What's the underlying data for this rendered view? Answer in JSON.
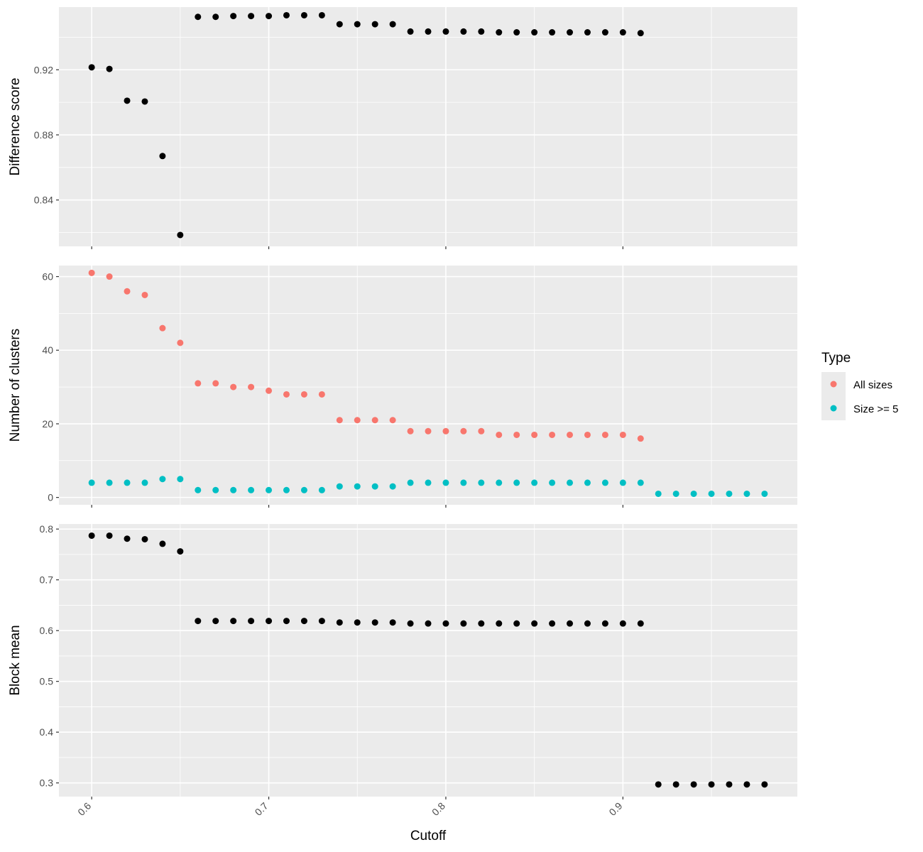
{
  "chart_data": {
    "type": "scatter",
    "xlabel": "Cutoff",
    "x_ticks": [
      0.6,
      0.7,
      0.8,
      0.9
    ],
    "x_tick_labels": [
      "0.6",
      "0.7",
      "0.8",
      "0.9"
    ],
    "xlim": [
      0.5815,
      0.9985
    ],
    "grid": true,
    "legend": {
      "title": "Type",
      "placement": "right",
      "entries": [
        {
          "label": "All sizes",
          "color": "#F8766D"
        },
        {
          "label": "Size >= 5",
          "color": "#00BFC4"
        }
      ]
    },
    "panels": [
      {
        "ylabel": "Difference score",
        "ylim": [
          0.8115,
          0.9585
        ],
        "y_ticks": [
          0.84,
          0.88,
          0.92
        ],
        "y_tick_labels": [
          "0.84",
          "0.88",
          "0.92"
        ],
        "series": [
          {
            "color": "#000000",
            "x": [
              0.6,
              0.61,
              0.62,
              0.63,
              0.64,
              0.65,
              0.66,
              0.67,
              0.68,
              0.69,
              0.7,
              0.71,
              0.72,
              0.73,
              0.74,
              0.75,
              0.76,
              0.77,
              0.78,
              0.79,
              0.8,
              0.81,
              0.82,
              0.83,
              0.84,
              0.85,
              0.86,
              0.87,
              0.88,
              0.89,
              0.9,
              0.91
            ],
            "y": [
              0.9215,
              0.9205,
              0.901,
              0.9005,
              0.867,
              0.8185,
              0.9525,
              0.9525,
              0.953,
              0.953,
              0.953,
              0.9535,
              0.9535,
              0.9535,
              0.948,
              0.948,
              0.948,
              0.948,
              0.9435,
              0.9435,
              0.9435,
              0.9435,
              0.9435,
              0.943,
              0.943,
              0.943,
              0.943,
              0.943,
              0.943,
              0.943,
              0.943,
              0.9425
            ]
          }
        ]
      },
      {
        "ylabel": "Number of clusters",
        "ylim": [
          -2,
          63
        ],
        "y_ticks": [
          0,
          20,
          40,
          60
        ],
        "y_tick_labels": [
          "0",
          "20",
          "40",
          "60"
        ],
        "series": [
          {
            "name": "All sizes",
            "color": "#F8766D",
            "x": [
              0.6,
              0.61,
              0.62,
              0.63,
              0.64,
              0.65,
              0.66,
              0.67,
              0.68,
              0.69,
              0.7,
              0.71,
              0.72,
              0.73,
              0.74,
              0.75,
              0.76,
              0.77,
              0.78,
              0.79,
              0.8,
              0.81,
              0.82,
              0.83,
              0.84,
              0.85,
              0.86,
              0.87,
              0.88,
              0.89,
              0.9,
              0.91
            ],
            "y": [
              61,
              60,
              56,
              55,
              46,
              42,
              31,
              31,
              30,
              30,
              29,
              28,
              28,
              28,
              21,
              21,
              21,
              21,
              18,
              18,
              18,
              18,
              18,
              17,
              17,
              17,
              17,
              17,
              17,
              17,
              17,
              16
            ]
          },
          {
            "name": "Size >= 5",
            "color": "#00BFC4",
            "x": [
              0.6,
              0.61,
              0.62,
              0.63,
              0.64,
              0.65,
              0.66,
              0.67,
              0.68,
              0.69,
              0.7,
              0.71,
              0.72,
              0.73,
              0.74,
              0.75,
              0.76,
              0.77,
              0.78,
              0.79,
              0.8,
              0.81,
              0.82,
              0.83,
              0.84,
              0.85,
              0.86,
              0.87,
              0.88,
              0.89,
              0.9,
              0.91,
              0.92,
              0.93,
              0.94,
              0.95,
              0.96,
              0.97,
              0.98
            ],
            "y": [
              4,
              4,
              4,
              4,
              5,
              5,
              2,
              2,
              2,
              2,
              2,
              2,
              2,
              2,
              3,
              3,
              3,
              3,
              4,
              4,
              4,
              4,
              4,
              4,
              4,
              4,
              4,
              4,
              4,
              4,
              4,
              4,
              1,
              1,
              1,
              1,
              1,
              1,
              1
            ]
          }
        ]
      },
      {
        "ylabel": "Block mean",
        "ylim": [
          0.273,
          0.81
        ],
        "y_ticks": [
          0.3,
          0.4,
          0.5,
          0.6,
          0.7,
          0.8
        ],
        "y_tick_labels": [
          "0.3",
          "0.4",
          "0.5",
          "0.6",
          "0.7",
          "0.8"
        ],
        "series": [
          {
            "color": "#000000",
            "x": [
              0.6,
              0.61,
              0.62,
              0.63,
              0.64,
              0.65,
              0.66,
              0.67,
              0.68,
              0.69,
              0.7,
              0.71,
              0.72,
              0.73,
              0.74,
              0.75,
              0.76,
              0.77,
              0.78,
              0.79,
              0.8,
              0.81,
              0.82,
              0.83,
              0.84,
              0.85,
              0.86,
              0.87,
              0.88,
              0.89,
              0.9,
              0.91,
              0.92,
              0.93,
              0.94,
              0.95,
              0.96,
              0.97,
              0.98
            ],
            "y": [
              0.787,
              0.787,
              0.781,
              0.78,
              0.771,
              0.756,
              0.619,
              0.619,
              0.619,
              0.619,
              0.619,
              0.619,
              0.619,
              0.619,
              0.616,
              0.616,
              0.616,
              0.616,
              0.614,
              0.614,
              0.614,
              0.614,
              0.614,
              0.614,
              0.614,
              0.614,
              0.614,
              0.614,
              0.614,
              0.614,
              0.614,
              0.614,
              0.297,
              0.297,
              0.297,
              0.297,
              0.297,
              0.297,
              0.297
            ]
          }
        ]
      }
    ]
  }
}
